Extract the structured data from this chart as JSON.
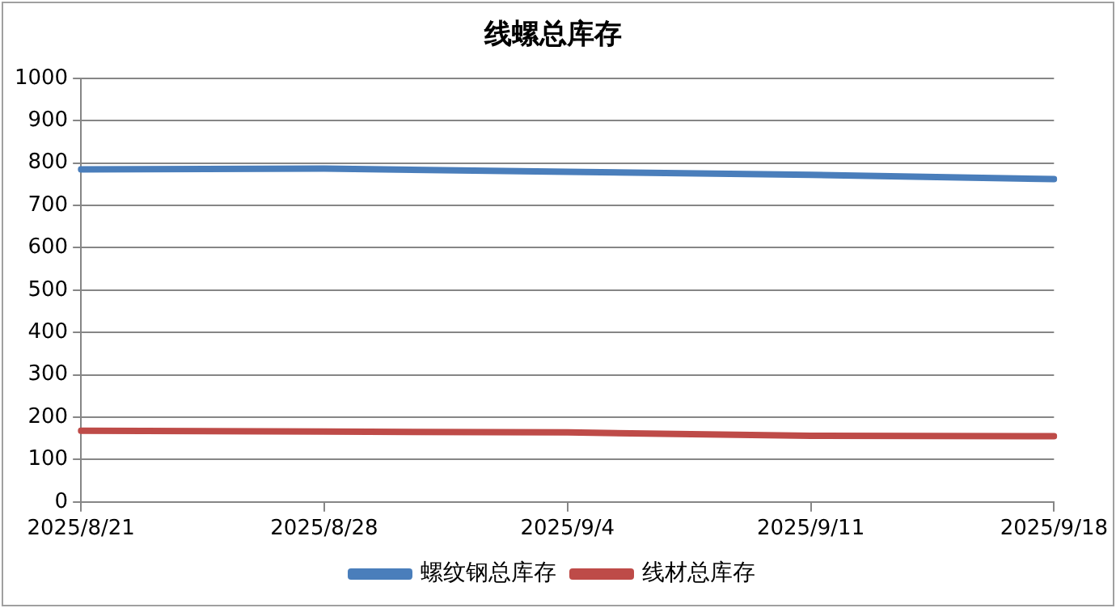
{
  "chart_data": {
    "type": "line",
    "title": "线螺总库存",
    "categories": [
      "2025/8/21",
      "2025/8/28",
      "2025/9/4",
      "2025/9/11",
      "2025/9/18"
    ],
    "series": [
      {
        "name": "螺纹钢总库存",
        "color": "#4a7ebb",
        "values": [
          785,
          787,
          779,
          772,
          762
        ]
      },
      {
        "name": "线材总库存",
        "color": "#be4b48",
        "values": [
          168,
          166,
          164,
          156,
          155
        ]
      }
    ],
    "ylim": [
      0,
      1000
    ],
    "yticks": [
      0,
      100,
      200,
      300,
      400,
      500,
      600,
      700,
      800,
      900,
      1000
    ],
    "grid": "y",
    "legend": "bottom",
    "marker": "none",
    "line_style": "solid"
  }
}
